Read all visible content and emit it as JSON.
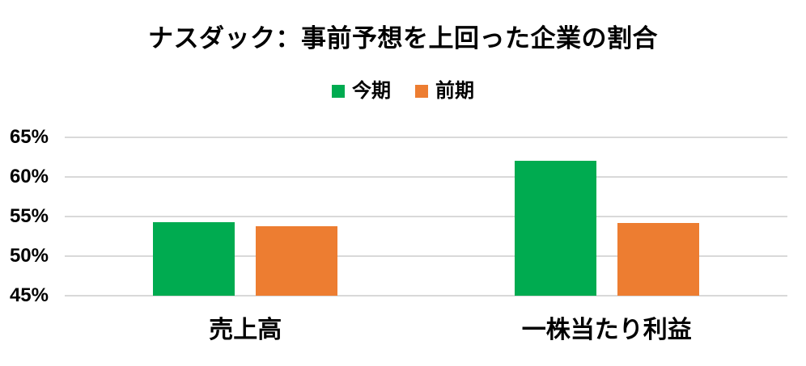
{
  "page": {
    "background": "#FFFFFF",
    "text_color": "#000000"
  },
  "chart_data": {
    "type": "bar",
    "title": "ナスダック：事前予想を上回った企業の割合",
    "categories": [
      "売上高",
      "一株当たり利益"
    ],
    "series": [
      {
        "name": "今期",
        "color": "#00AB50",
        "values": [
          54.3,
          62.0
        ]
      },
      {
        "name": "前期",
        "color": "#ED7D31",
        "values": [
          53.8,
          54.2
        ]
      }
    ],
    "ylim": [
      45,
      65
    ],
    "ytick_step": 5,
    "ytick_labels": [
      "45%",
      "50%",
      "55%",
      "60%",
      "65%"
    ],
    "ytick_suffix": "%",
    "grid": true,
    "gridline_color": "#D9D9D9",
    "legend_position": "top",
    "xlabel": "",
    "ylabel": ""
  }
}
